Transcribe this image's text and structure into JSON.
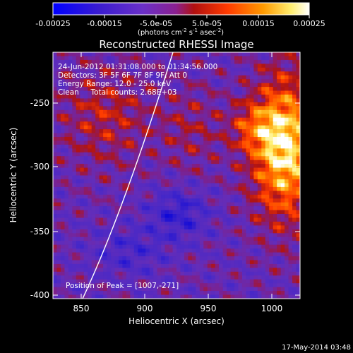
{
  "colorbar": {
    "ticks": [
      "-0.00025",
      "-0.00015",
      "-5.0e-05",
      "5.0e-05",
      "0.00015",
      "0.00025"
    ],
    "units_main": "(photons cm",
    "units_exp1": "-2",
    "units_mid": " s",
    "units_exp2": "-1",
    "units_tail": " asec",
    "units_exp3": "-2",
    "units_close": ")"
  },
  "title": "Reconstructed RHESSI Image",
  "info": {
    "time": "24-Jun-2012 01:31:08.000 to 01:34:56.000",
    "detectors": "Detectors: 3F 5F 6F 7F 8F 9F, Att 0",
    "energy": "Energy Range: 12.0 - 25.0 keV",
    "clean": "Clean     Total counts: 2.68E+03"
  },
  "peak_label": "Position of Peak = [1007,-271]",
  "axes": {
    "xlabel": "Heliocentric X (arcsec)",
    "ylabel": "Heliocentric Y (arcsec)",
    "xticks": [
      "850",
      "900",
      "950",
      "1000"
    ],
    "yticks": [
      "-250",
      "-300",
      "-350",
      "-400"
    ],
    "xlim": [
      828,
      1022
    ],
    "ylim": [
      -403,
      -218
    ]
  },
  "footer_date": "17-May-2014 03:48",
  "colors": {
    "background": "#000000",
    "axis": "#ffffff",
    "limb_line": "#ffffff",
    "colormap": [
      "#0000ff",
      "#4020c0",
      "#6a32c8",
      "#8a2aa0",
      "#b01010",
      "#ff4000",
      "#ff9800",
      "#ffff80",
      "#ffffff"
    ]
  }
}
